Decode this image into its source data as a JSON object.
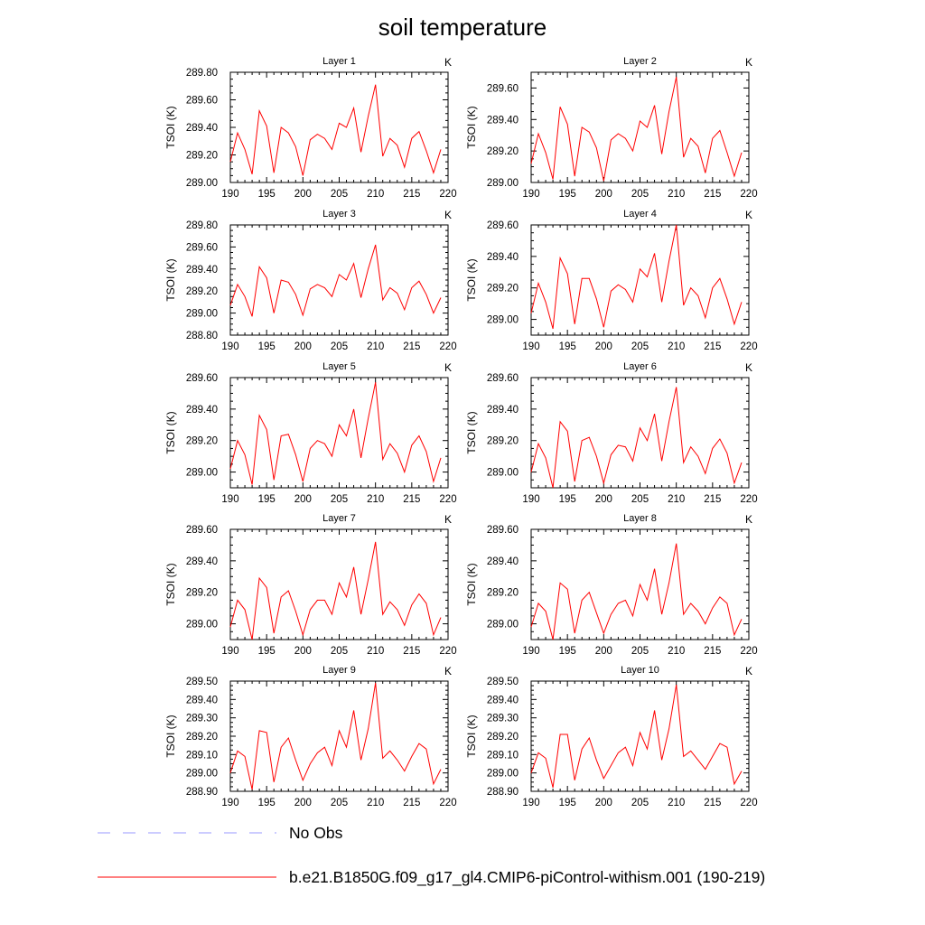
{
  "chart_data": {
    "type": "line",
    "title": "soil temperature",
    "x": [
      190,
      191,
      192,
      193,
      194,
      195,
      196,
      197,
      198,
      199,
      200,
      201,
      202,
      203,
      204,
      205,
      206,
      207,
      208,
      209,
      210,
      211,
      212,
      213,
      214,
      215,
      216,
      217,
      218,
      219
    ],
    "xlim": [
      190,
      220
    ],
    "xticks": [
      190,
      195,
      200,
      205,
      210,
      215,
      220
    ],
    "unit": "K",
    "ylabel": "TSOI  (K)",
    "legend": [
      {
        "name": "No Obs",
        "color": "#9999ff",
        "style": "dashed"
      },
      {
        "name": "b.e21.B1850G.f09_g17_gl4.CMIP6-piControl-withism.001 (190-219)",
        "color": "#ff0000",
        "style": "solid"
      }
    ],
    "panels": [
      {
        "title": "Layer 1",
        "ylim": [
          289.0,
          289.8
        ],
        "yticks": [
          "289.00",
          "289.20",
          "289.40",
          "289.60",
          "289.80"
        ],
        "values": [
          289.15,
          289.36,
          289.24,
          289.06,
          289.52,
          289.41,
          289.07,
          289.4,
          289.36,
          289.26,
          289.05,
          289.31,
          289.35,
          289.32,
          289.24,
          289.43,
          289.4,
          289.54,
          289.22,
          289.48,
          289.71,
          289.19,
          289.32,
          289.27,
          289.11,
          289.32,
          289.37,
          289.23,
          289.07,
          289.24
        ]
      },
      {
        "title": "Layer 2",
        "ylim": [
          289.0,
          289.7
        ],
        "yticks": [
          "289.00",
          "289.20",
          "289.40",
          "289.60"
        ],
        "values": [
          289.12,
          289.31,
          289.19,
          289.02,
          289.48,
          289.37,
          289.04,
          289.35,
          289.32,
          289.22,
          289.01,
          289.27,
          289.31,
          289.28,
          289.2,
          289.39,
          289.35,
          289.49,
          289.18,
          289.45,
          289.67,
          289.16,
          289.28,
          289.23,
          289.06,
          289.28,
          289.33,
          289.19,
          289.04,
          289.19
        ]
      },
      {
        "title": "Layer 3",
        "ylim": [
          288.8,
          289.8
        ],
        "yticks": [
          "288.80",
          "289.00",
          "289.20",
          "289.40",
          "289.60",
          "289.80"
        ],
        "values": [
          289.07,
          289.26,
          289.15,
          288.97,
          289.42,
          289.32,
          289.0,
          289.3,
          289.28,
          289.17,
          288.98,
          289.22,
          289.26,
          289.23,
          289.15,
          289.35,
          289.3,
          289.45,
          289.14,
          289.4,
          289.62,
          289.12,
          289.23,
          289.18,
          289.03,
          289.23,
          289.29,
          289.17,
          289.0,
          289.14
        ]
      },
      {
        "title": "Layer 4",
        "ylim": [
          288.9,
          289.6
        ],
        "yticks": [
          "289.00",
          "289.20",
          "289.40",
          "289.60"
        ],
        "values": [
          289.04,
          289.23,
          289.11,
          288.94,
          289.39,
          289.29,
          288.97,
          289.26,
          289.26,
          289.13,
          288.95,
          289.18,
          289.22,
          289.19,
          289.11,
          289.32,
          289.27,
          289.42,
          289.11,
          289.37,
          289.6,
          289.09,
          289.2,
          289.15,
          289.01,
          289.2,
          289.26,
          289.13,
          288.97,
          289.11
        ]
      },
      {
        "title": "Layer 5",
        "ylim": [
          288.9,
          289.6
        ],
        "yticks": [
          "289.00",
          "289.20",
          "289.40",
          "289.60"
        ],
        "values": [
          289.02,
          289.2,
          289.11,
          288.92,
          289.36,
          289.27,
          288.95,
          289.23,
          289.24,
          289.11,
          288.94,
          289.15,
          289.2,
          289.18,
          289.1,
          289.3,
          289.23,
          289.4,
          289.09,
          289.34,
          289.57,
          289.08,
          289.18,
          289.12,
          289.0,
          289.17,
          289.23,
          289.13,
          288.94,
          289.09
        ]
      },
      {
        "title": "Layer 6",
        "ylim": [
          288.9,
          289.6
        ],
        "yticks": [
          "289.00",
          "289.20",
          "289.40",
          "289.60"
        ],
        "values": [
          289.0,
          289.18,
          289.09,
          288.9,
          289.32,
          289.26,
          288.94,
          289.2,
          289.22,
          289.1,
          288.93,
          289.11,
          289.17,
          289.16,
          289.07,
          289.28,
          289.2,
          289.37,
          289.07,
          289.32,
          289.54,
          289.06,
          289.16,
          289.1,
          288.99,
          289.15,
          289.21,
          289.12,
          288.93,
          289.06
        ]
      },
      {
        "title": "Layer 7",
        "ylim": [
          288.9,
          289.6
        ],
        "yticks": [
          "289.00",
          "289.20",
          "289.40",
          "289.60"
        ],
        "values": [
          288.98,
          289.15,
          289.09,
          288.9,
          289.29,
          289.23,
          288.94,
          289.17,
          289.21,
          289.08,
          288.93,
          289.09,
          289.15,
          289.15,
          289.06,
          289.26,
          289.17,
          289.36,
          289.06,
          289.28,
          289.52,
          289.06,
          289.14,
          289.09,
          288.99,
          289.12,
          289.19,
          289.13,
          288.93,
          289.04
        ]
      },
      {
        "title": "Layer 8",
        "ylim": [
          288.9,
          289.6
        ],
        "yticks": [
          "289.00",
          "289.20",
          "289.40",
          "289.60"
        ],
        "values": [
          288.98,
          289.13,
          289.08,
          288.9,
          289.26,
          289.22,
          288.94,
          289.15,
          289.2,
          289.07,
          288.94,
          289.06,
          289.13,
          289.15,
          289.05,
          289.25,
          289.15,
          289.35,
          289.06,
          289.26,
          289.51,
          289.06,
          289.13,
          289.08,
          289.0,
          289.1,
          289.17,
          289.13,
          288.93,
          289.03
        ]
      },
      {
        "title": "Layer 9",
        "ylim": [
          288.9,
          289.5
        ],
        "yticks": [
          "288.90",
          "289.00",
          "289.10",
          "289.20",
          "289.30",
          "289.40",
          "289.50"
        ],
        "values": [
          289.0,
          289.12,
          289.09,
          288.91,
          289.23,
          289.22,
          288.95,
          289.14,
          289.19,
          289.07,
          288.96,
          289.05,
          289.11,
          289.14,
          289.04,
          289.23,
          289.14,
          289.34,
          289.07,
          289.24,
          289.49,
          289.08,
          289.12,
          289.07,
          289.01,
          289.09,
          289.16,
          289.13,
          288.94,
          289.02
        ]
      },
      {
        "title": "Layer 10",
        "ylim": [
          288.9,
          289.5
        ],
        "yticks": [
          "288.90",
          "289.00",
          "289.10",
          "289.20",
          "289.30",
          "289.40",
          "289.50"
        ],
        "values": [
          289.0,
          289.11,
          289.08,
          288.92,
          289.21,
          289.21,
          288.96,
          289.13,
          289.19,
          289.07,
          288.97,
          289.04,
          289.11,
          289.14,
          289.04,
          289.22,
          289.13,
          289.34,
          289.07,
          289.24,
          289.48,
          289.09,
          289.12,
          289.07,
          289.02,
          289.09,
          289.16,
          289.14,
          288.94,
          289.01
        ]
      }
    ]
  }
}
